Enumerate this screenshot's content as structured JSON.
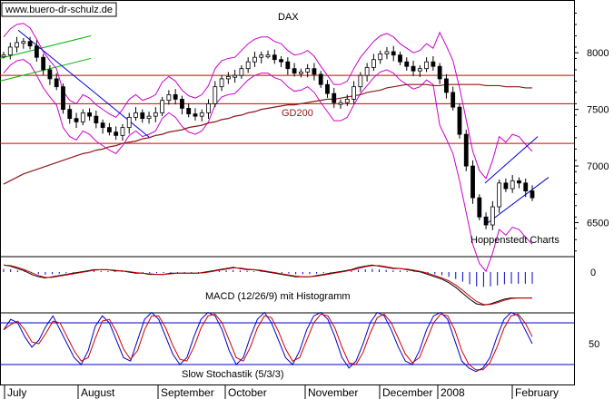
{
  "chart_data": {
    "type": "candlestick",
    "watermark": "www.buero-dr-schulz.de",
    "title": "DAX",
    "source_label": "Hoppenstedt Charts",
    "ma_label": "GD200",
    "macd_label": "MACD (12/26/9) mit Histogramm",
    "stoch_label": "Slow Stochastik (5/3/3)",
    "price_ticks": [
      "8000",
      "7500",
      "7000",
      "6500"
    ],
    "macd_ticks": [
      "0"
    ],
    "stoch_ticks": [
      "50"
    ],
    "months": [
      "July",
      "August",
      "September",
      "October",
      "November",
      "December",
      "2008",
      "February"
    ],
    "resistance_levels": [
      7800,
      7550,
      7200
    ],
    "price_range": [
      6200,
      8450
    ],
    "close_series": [
      7980,
      8050,
      8090,
      8100,
      8060,
      7960,
      7850,
      7770,
      7700,
      7500,
      7420,
      7390,
      7470,
      7440,
      7380,
      7340,
      7300,
      7270,
      7340,
      7430,
      7470,
      7420,
      7440,
      7470,
      7580,
      7630,
      7590,
      7510,
      7460,
      7440,
      7470,
      7550,
      7700,
      7770,
      7790,
      7800,
      7860,
      7920,
      7960,
      7980,
      7980,
      7940,
      7920,
      7860,
      7820,
      7830,
      7860,
      7810,
      7720,
      7640,
      7560,
      7560,
      7590,
      7700,
      7800,
      7870,
      7940,
      7990,
      8010,
      7980,
      7920,
      7880,
      7840,
      7860,
      7920,
      7880,
      7770,
      7650,
      7520,
      7280,
      7000,
      6720,
      6550,
      6480,
      6640,
      6850,
      6800,
      6870,
      6850,
      6780,
      6720
    ],
    "ma200_series": [
      6840,
      6870,
      6900,
      6930,
      6950,
      6970,
      6990,
      7010,
      7030,
      7050,
      7070,
      7090,
      7110,
      7120,
      7140,
      7150,
      7170,
      7180,
      7200,
      7210,
      7220,
      7240,
      7250,
      7270,
      7280,
      7300,
      7310,
      7320,
      7340,
      7350,
      7360,
      7380,
      7390,
      7410,
      7420,
      7440,
      7450,
      7470,
      7480,
      7500,
      7510,
      7520,
      7530,
      7540,
      7540,
      7550,
      7560,
      7570,
      7580,
      7590,
      7590,
      7600,
      7610,
      7620,
      7630,
      7650,
      7660,
      7670,
      7690,
      7700,
      7710,
      7720,
      7720,
      7720,
      7720,
      7710,
      7710,
      7720,
      7720,
      7720,
      7720,
      7720,
      7720,
      7710,
      7710,
      7710,
      7700,
      7700,
      7700,
      7690,
      7690
    ],
    "macd_series": [
      0.6,
      0.5,
      0.3,
      0.1,
      -0.2,
      -0.4,
      -0.5,
      -0.4,
      -0.3,
      -0.2,
      -0.1,
      0.0,
      0.1,
      0.2,
      0.2,
      0.2,
      0.1,
      0.1,
      0.0,
      -0.1,
      -0.1,
      -0.2,
      -0.2,
      -0.2,
      -0.1,
      -0.1,
      -0.1,
      -0.1,
      -0.1,
      0.0,
      0.1,
      0.2,
      0.3,
      0.4,
      0.3,
      0.2,
      0.2,
      0.1,
      0.0,
      -0.1,
      -0.2,
      -0.3,
      -0.4,
      -0.4,
      -0.4,
      -0.3,
      -0.2,
      -0.1,
      0.0,
      0.1,
      0.2,
      0.4,
      0.5,
      0.6,
      0.5,
      0.4,
      0.3,
      0.3,
      0.2,
      0.1,
      0.0,
      -0.2,
      -0.4,
      -0.6,
      -0.9,
      -1.3,
      -1.8,
      -2.3,
      -2.7,
      -2.8,
      -2.7,
      -2.5,
      -2.3,
      -2.2,
      -2.2,
      -2.2,
      -2.2
    ],
    "stoch_series": [
      70,
      85,
      80,
      60,
      45,
      55,
      75,
      90,
      70,
      50,
      30,
      20,
      40,
      75,
      90,
      80,
      55,
      30,
      25,
      55,
      85,
      95,
      85,
      60,
      35,
      20,
      30,
      60,
      85,
      95,
      90,
      70,
      40,
      20,
      30,
      60,
      85,
      95,
      80,
      55,
      30,
      20,
      40,
      70,
      90,
      95,
      85,
      60,
      30,
      15,
      25,
      50,
      80,
      95,
      90,
      70,
      45,
      25,
      20,
      40,
      70,
      90,
      95,
      85,
      55,
      25,
      15,
      10,
      15,
      30,
      60,
      85,
      95,
      90,
      70,
      50
    ]
  }
}
